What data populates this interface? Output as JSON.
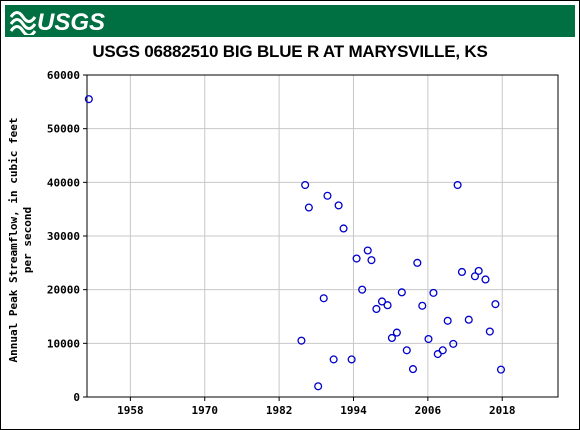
{
  "header": {
    "agency_logo": "USGS",
    "logo_color": "#006f41"
  },
  "chart_data": {
    "type": "scatter",
    "title": "USGS 06882510 BIG BLUE R AT MARYSVILLE, KS",
    "xlabel": "",
    "ylabel_line1": "Annual Peak Streamflow, in cubic feet",
    "ylabel_line2": "per second",
    "xlim": [
      1951,
      2027
    ],
    "ylim": [
      0,
      60000
    ],
    "x_ticks": [
      1958,
      1970,
      1982,
      1994,
      2006,
      2018
    ],
    "x_tick_labels": [
      "1958",
      "1970",
      "1982",
      "1994",
      "2006",
      "2018"
    ],
    "y_ticks": [
      0,
      10000,
      20000,
      30000,
      40000,
      50000,
      60000
    ],
    "y_tick_labels": [
      "0",
      "10000",
      "20000",
      "30000",
      "40000",
      "50000",
      "60000"
    ],
    "grid": true,
    "marker": "open-circle",
    "marker_color": "#0000cc",
    "series": [
      {
        "points": [
          [
            1951.3,
            55500
          ],
          [
            1985.6,
            10500
          ],
          [
            1986.2,
            39500
          ],
          [
            1986.8,
            35300
          ],
          [
            1988.3,
            2000
          ],
          [
            1989.2,
            18400
          ],
          [
            1989.8,
            37500
          ],
          [
            1990.8,
            7000
          ],
          [
            1991.6,
            35700
          ],
          [
            1992.4,
            31400
          ],
          [
            1993.7,
            7000
          ],
          [
            1994.5,
            25800
          ],
          [
            1995.4,
            20000
          ],
          [
            1996.3,
            27300
          ],
          [
            1996.9,
            25500
          ],
          [
            1997.7,
            16400
          ],
          [
            1998.6,
            17800
          ],
          [
            1999.5,
            17100
          ],
          [
            2000.2,
            11000
          ],
          [
            2001.0,
            12000
          ],
          [
            2001.8,
            19500
          ],
          [
            2002.6,
            8700
          ],
          [
            2003.6,
            5200
          ],
          [
            2004.3,
            25000
          ],
          [
            2005.1,
            17000
          ],
          [
            2006.1,
            10800
          ],
          [
            2006.9,
            19400
          ],
          [
            2007.6,
            8000
          ],
          [
            2008.4,
            8700
          ],
          [
            2009.2,
            14200
          ],
          [
            2010.1,
            9900
          ],
          [
            2010.8,
            39500
          ],
          [
            2011.5,
            23300
          ],
          [
            2012.6,
            14400
          ],
          [
            2013.6,
            22500
          ],
          [
            2014.2,
            23500
          ],
          [
            2015.3,
            21900
          ],
          [
            2016.0,
            12200
          ],
          [
            2016.9,
            17300
          ],
          [
            2017.8,
            5100
          ]
        ]
      }
    ]
  }
}
